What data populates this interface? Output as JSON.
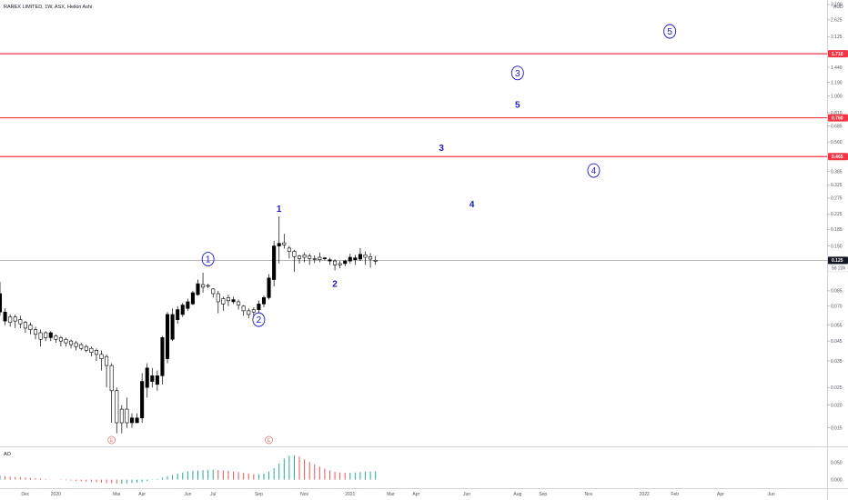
{
  "header": {
    "symbol_title": "RAREX LIMITED, 1W, ASX, Heikin Ashi"
  },
  "colors": {
    "bull_fill": "#ffffff",
    "bear_fill": "#000000",
    "candle_outline": "#000000",
    "resistance_line": "#f23645",
    "wave_blue": "#1a1ac4",
    "earnings": "#e06a6a",
    "ao_up": "#26a69a",
    "ao_down": "#ef5350",
    "price_line": "#9e9e9e"
  },
  "chart_data": {
    "type": "candlestick",
    "style": "Heikin Ashi",
    "title": "RAREX LIMITED, 1W, ASX, Heikin Ashi",
    "y_scale": "log",
    "y_currency": "AUD",
    "y_tick_labels": [
      "3.190",
      "2.625",
      "2.125",
      "1.710",
      "1.440",
      "1.190",
      "1.000",
      "0.810",
      "0.760",
      "0.685",
      "0.560",
      "0.465",
      "0.385",
      "0.325",
      "0.275",
      "0.225",
      "0.185",
      "0.150",
      "0.125",
      "0.120",
      "0.085",
      "0.070",
      "0.055",
      "0.045",
      "0.035",
      "0.025",
      "0.020",
      "0.015"
    ],
    "y_tick_values": [
      3.19,
      2.625,
      2.125,
      1.71,
      1.44,
      1.19,
      1.0,
      0.81,
      0.76,
      0.685,
      0.56,
      0.465,
      0.385,
      0.325,
      0.275,
      0.225,
      0.185,
      0.15,
      0.125,
      0.12,
      0.085,
      0.07,
      0.055,
      0.045,
      0.035,
      0.025,
      0.02,
      0.015
    ],
    "x_tick_labels": [
      "Dec",
      "2020",
      "Mar",
      "Apr",
      "Jun",
      "Jul",
      "Sep",
      "Nov",
      "2021",
      "Mar",
      "Apr",
      "Jun",
      "Aug",
      "Sep",
      "Nov",
      "2022",
      "Feb",
      "Apr",
      "Jun"
    ],
    "x_tick_weeks": [
      5,
      11,
      23,
      28,
      37,
      42,
      51,
      60,
      69,
      77,
      82,
      92,
      102,
      107,
      116,
      127,
      133,
      142,
      152
    ],
    "ylim": [
      0.012,
      3.3
    ],
    "xlim_weeks": [
      0,
      163
    ],
    "current_price": {
      "value": 0.125,
      "label": "0.125",
      "countdown": "5d 23h"
    },
    "resistance_levels": [
      {
        "value": 1.71,
        "label": "1.710"
      },
      {
        "value": 0.76,
        "label": "0.760"
      },
      {
        "value": 0.465,
        "label": "0.465"
      }
    ],
    "candles": [
      {
        "w": 0,
        "o": 0.082,
        "c": 0.065,
        "h": 0.095,
        "l": 0.062
      },
      {
        "w": 1,
        "o": 0.065,
        "c": 0.058,
        "h": 0.068,
        "l": 0.055
      },
      {
        "w": 2,
        "o": 0.057,
        "c": 0.061,
        "h": 0.063,
        "l": 0.054
      },
      {
        "w": 3,
        "o": 0.058,
        "c": 0.061,
        "h": 0.063,
        "l": 0.053
      },
      {
        "w": 4,
        "o": 0.056,
        "c": 0.059,
        "h": 0.062,
        "l": 0.053
      },
      {
        "w": 5,
        "o": 0.053,
        "c": 0.057,
        "h": 0.058,
        "l": 0.05
      },
      {
        "w": 6,
        "o": 0.052,
        "c": 0.055,
        "h": 0.057,
        "l": 0.049
      },
      {
        "w": 7,
        "o": 0.049,
        "c": 0.052,
        "h": 0.054,
        "l": 0.046
      },
      {
        "w": 8,
        "o": 0.046,
        "c": 0.05,
        "h": 0.052,
        "l": 0.042
      },
      {
        "w": 9,
        "o": 0.047,
        "c": 0.05,
        "h": 0.051,
        "l": 0.045
      },
      {
        "w": 10,
        "o": 0.05,
        "c": 0.047,
        "h": 0.051,
        "l": 0.045
      },
      {
        "w": 11,
        "o": 0.046,
        "c": 0.048,
        "h": 0.049,
        "l": 0.044
      },
      {
        "w": 12,
        "o": 0.045,
        "c": 0.047,
        "h": 0.048,
        "l": 0.042
      },
      {
        "w": 13,
        "o": 0.044,
        "c": 0.046,
        "h": 0.047,
        "l": 0.042
      },
      {
        "w": 14,
        "o": 0.043,
        "c": 0.045,
        "h": 0.046,
        "l": 0.041
      },
      {
        "w": 15,
        "o": 0.042,
        "c": 0.044,
        "h": 0.045,
        "l": 0.04
      },
      {
        "w": 16,
        "o": 0.041,
        "c": 0.043,
        "h": 0.044,
        "l": 0.04
      },
      {
        "w": 17,
        "o": 0.04,
        "c": 0.042,
        "h": 0.043,
        "l": 0.039
      },
      {
        "w": 18,
        "o": 0.039,
        "c": 0.041,
        "h": 0.042,
        "l": 0.037
      },
      {
        "w": 19,
        "o": 0.038,
        "c": 0.04,
        "h": 0.041,
        "l": 0.035
      },
      {
        "w": 20,
        "o": 0.036,
        "c": 0.038,
        "h": 0.04,
        "l": 0.031
      },
      {
        "w": 21,
        "o": 0.033,
        "c": 0.037,
        "h": 0.038,
        "l": 0.025
      },
      {
        "w": 22,
        "o": 0.024,
        "c": 0.033,
        "h": 0.034,
        "l": 0.016
      },
      {
        "w": 23,
        "o": 0.016,
        "c": 0.024,
        "h": 0.025,
        "l": 0.014
      },
      {
        "w": 24,
        "o": 0.016,
        "c": 0.019,
        "h": 0.02,
        "l": 0.014
      },
      {
        "w": 25,
        "o": 0.016,
        "c": 0.019,
        "h": 0.022,
        "l": 0.015
      },
      {
        "w": 26,
        "o": 0.017,
        "c": 0.016,
        "h": 0.018,
        "l": 0.015
      },
      {
        "w": 27,
        "o": 0.017,
        "c": 0.016,
        "h": 0.018,
        "l": 0.016
      },
      {
        "w": 28,
        "o": 0.027,
        "c": 0.017,
        "h": 0.03,
        "l": 0.016
      },
      {
        "w": 29,
        "o": 0.032,
        "c": 0.025,
        "h": 0.034,
        "l": 0.022
      },
      {
        "w": 30,
        "o": 0.029,
        "c": 0.027,
        "h": 0.032,
        "l": 0.025
      },
      {
        "w": 31,
        "o": 0.029,
        "c": 0.026,
        "h": 0.031,
        "l": 0.024
      },
      {
        "w": 32,
        "o": 0.047,
        "c": 0.029,
        "h": 0.048,
        "l": 0.026
      },
      {
        "w": 33,
        "o": 0.063,
        "c": 0.036,
        "h": 0.065,
        "l": 0.034
      },
      {
        "w": 34,
        "o": 0.063,
        "c": 0.046,
        "h": 0.068,
        "l": 0.045
      },
      {
        "w": 35,
        "o": 0.067,
        "c": 0.059,
        "h": 0.07,
        "l": 0.056
      },
      {
        "w": 36,
        "o": 0.071,
        "c": 0.063,
        "h": 0.073,
        "l": 0.061
      },
      {
        "w": 37,
        "o": 0.074,
        "c": 0.068,
        "h": 0.077,
        "l": 0.066
      },
      {
        "w": 38,
        "o": 0.083,
        "c": 0.072,
        "h": 0.085,
        "l": 0.071
      },
      {
        "w": 39,
        "o": 0.093,
        "c": 0.081,
        "h": 0.098,
        "l": 0.08
      },
      {
        "w": 40,
        "o": 0.089,
        "c": 0.092,
        "h": 0.107,
        "l": 0.083
      },
      {
        "w": 41,
        "o": 0.09,
        "c": 0.091,
        "h": 0.093,
        "l": 0.088
      },
      {
        "w": 42,
        "o": 0.082,
        "c": 0.087,
        "h": 0.088,
        "l": 0.078
      },
      {
        "w": 43,
        "o": 0.074,
        "c": 0.082,
        "h": 0.085,
        "l": 0.064
      },
      {
        "w": 44,
        "o": 0.072,
        "c": 0.077,
        "h": 0.079,
        "l": 0.066
      },
      {
        "w": 45,
        "o": 0.075,
        "c": 0.078,
        "h": 0.081,
        "l": 0.07
      },
      {
        "w": 46,
        "o": 0.076,
        "c": 0.074,
        "h": 0.079,
        "l": 0.072
      },
      {
        "w": 47,
        "o": 0.071,
        "c": 0.074,
        "h": 0.076,
        "l": 0.067
      },
      {
        "w": 48,
        "o": 0.066,
        "c": 0.07,
        "h": 0.071,
        "l": 0.062
      },
      {
        "w": 49,
        "o": 0.063,
        "c": 0.066,
        "h": 0.068,
        "l": 0.06
      },
      {
        "w": 50,
        "o": 0.065,
        "c": 0.067,
        "h": 0.069,
        "l": 0.062
      },
      {
        "w": 51,
        "o": 0.072,
        "c": 0.067,
        "h": 0.075,
        "l": 0.064
      },
      {
        "w": 52,
        "o": 0.078,
        "c": 0.072,
        "h": 0.08,
        "l": 0.069
      },
      {
        "w": 53,
        "o": 0.1,
        "c": 0.078,
        "h": 0.105,
        "l": 0.076
      },
      {
        "w": 54,
        "o": 0.15,
        "c": 0.098,
        "h": 0.16,
        "l": 0.09
      },
      {
        "w": 55,
        "o": 0.155,
        "c": 0.15,
        "h": 0.218,
        "l": 0.12
      },
      {
        "w": 56,
        "o": 0.152,
        "c": 0.156,
        "h": 0.175,
        "l": 0.145
      },
      {
        "w": 57,
        "o": 0.14,
        "c": 0.146,
        "h": 0.15,
        "l": 0.128
      },
      {
        "w": 58,
        "o": 0.131,
        "c": 0.14,
        "h": 0.143,
        "l": 0.108
      },
      {
        "w": 59,
        "o": 0.128,
        "c": 0.132,
        "h": 0.134,
        "l": 0.12
      },
      {
        "w": 60,
        "o": 0.13,
        "c": 0.134,
        "h": 0.138,
        "l": 0.122
      },
      {
        "w": 61,
        "o": 0.128,
        "c": 0.132,
        "h": 0.136,
        "l": 0.118
      },
      {
        "w": 62,
        "o": 0.128,
        "c": 0.128,
        "h": 0.133,
        "l": 0.121
      },
      {
        "w": 63,
        "o": 0.126,
        "c": 0.13,
        "h": 0.138,
        "l": 0.122
      },
      {
        "w": 64,
        "o": 0.129,
        "c": 0.128,
        "h": 0.13,
        "l": 0.125
      },
      {
        "w": 65,
        "o": 0.126,
        "c": 0.124,
        "h": 0.129,
        "l": 0.118
      },
      {
        "w": 66,
        "o": 0.118,
        "c": 0.124,
        "h": 0.127,
        "l": 0.11
      },
      {
        "w": 67,
        "o": 0.118,
        "c": 0.12,
        "h": 0.124,
        "l": 0.113
      },
      {
        "w": 68,
        "o": 0.124,
        "c": 0.12,
        "h": 0.126,
        "l": 0.116
      },
      {
        "w": 69,
        "o": 0.13,
        "c": 0.124,
        "h": 0.136,
        "l": 0.12
      },
      {
        "w": 70,
        "o": 0.129,
        "c": 0.126,
        "h": 0.134,
        "l": 0.118
      },
      {
        "w": 71,
        "o": 0.135,
        "c": 0.127,
        "h": 0.146,
        "l": 0.124
      },
      {
        "w": 72,
        "o": 0.13,
        "c": 0.134,
        "h": 0.14,
        "l": 0.118
      },
      {
        "w": 73,
        "o": 0.127,
        "c": 0.131,
        "h": 0.137,
        "l": 0.114
      },
      {
        "w": 74,
        "o": 0.125,
        "c": 0.125,
        "h": 0.132,
        "l": 0.118
      }
    ],
    "wave_labels": [
      {
        "text": "1",
        "circled": false,
        "w": 55,
        "v": 0.24
      },
      {
        "text": "2",
        "circled": false,
        "w": 66,
        "v": 0.093
      },
      {
        "text": "3",
        "circled": false,
        "w": 87,
        "v": 0.52
      },
      {
        "text": "4",
        "circled": false,
        "w": 93,
        "v": 0.255
      },
      {
        "text": "5",
        "circled": false,
        "w": 102,
        "v": 0.9
      },
      {
        "text": "1",
        "circled": true,
        "w": 41,
        "v": 0.127
      },
      {
        "text": "2",
        "circled": true,
        "w": 51,
        "v": 0.059
      },
      {
        "text": "3",
        "circled": true,
        "w": 102,
        "v": 1.34
      },
      {
        "text": "4",
        "circled": true,
        "w": 117,
        "v": 0.39
      },
      {
        "text": "5",
        "circled": true,
        "w": 132,
        "v": 2.27
      }
    ],
    "earnings_markers": [
      {
        "text": "E",
        "w": 22
      },
      {
        "text": "E",
        "w": 53
      }
    ],
    "ao": {
      "label": "AO",
      "y_tick_labels": [
        "0.050",
        "0.000"
      ],
      "y_tick_values": [
        0.05,
        0.0
      ],
      "ylim": [
        -0.02,
        0.09
      ],
      "values": [
        0.012,
        0.01,
        0.009,
        0.008,
        0.007,
        0.006,
        0.005,
        0.004,
        0.003,
        0.002,
        0.001,
        0.0,
        -0.001,
        -0.002,
        -0.003,
        -0.004,
        -0.005,
        -0.006,
        -0.007,
        -0.008,
        -0.009,
        -0.01,
        -0.011,
        -0.012,
        -0.012,
        -0.011,
        -0.01,
        -0.009,
        -0.007,
        -0.004,
        -0.001,
        0.002,
        0.006,
        0.01,
        0.014,
        0.018,
        0.021,
        0.024,
        0.026,
        0.027,
        0.028,
        0.029,
        0.029,
        0.028,
        0.027,
        0.026,
        0.024,
        0.022,
        0.02,
        0.018,
        0.016,
        0.016,
        0.018,
        0.024,
        0.034,
        0.048,
        0.062,
        0.07,
        0.072,
        0.068,
        0.06,
        0.052,
        0.045,
        0.038,
        0.032,
        0.027,
        0.023,
        0.021,
        0.02,
        0.02,
        0.021,
        0.022,
        0.023,
        0.024,
        0.024
      ]
    }
  }
}
